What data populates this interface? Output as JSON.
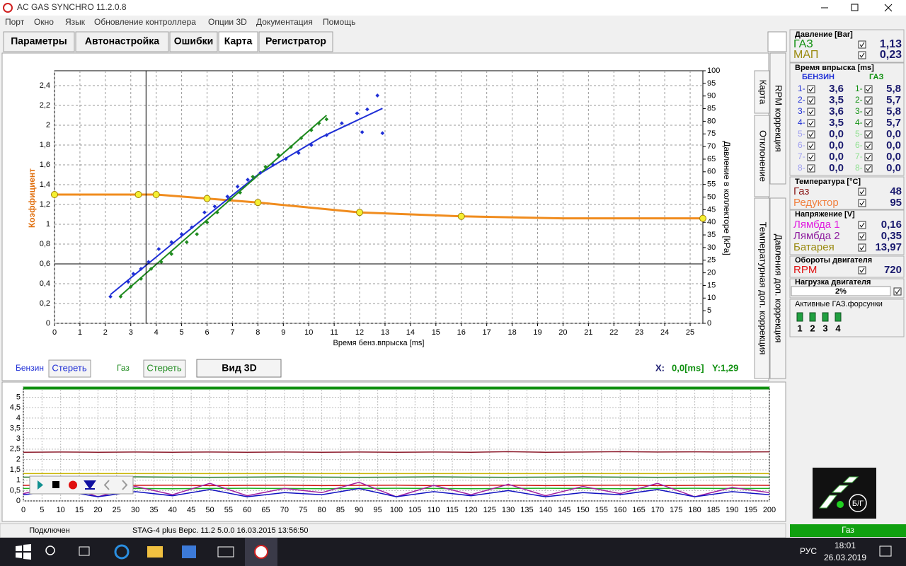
{
  "window": {
    "title": "AC GAS SYNCHRO  11.2.0.8"
  },
  "menu": [
    "Порт",
    "Окно",
    "Язык",
    "Обновление контроллера",
    "Опции 3D",
    "Документация",
    "Помощь"
  ],
  "tabs": [
    "Параметры",
    "Автонастройка",
    "Ошибки",
    "Карта",
    "Регистратор"
  ],
  "side_tabs": [
    "Карта",
    "RPM коррекция",
    "Отклонение",
    "Давления доп. коррекция",
    "Температурная доп. коррекция"
  ],
  "map_chart": {
    "type": "scatter",
    "y_label": "Коэффициент",
    "y2_label": "Давление в коллекторе [kPa]",
    "x_label": "Время бенз.впрыска [ms]",
    "xlim": [
      0,
      25.5
    ],
    "ylim": [
      0,
      2.55
    ],
    "y2lim": [
      0,
      100
    ],
    "xticks": [
      0,
      1,
      2,
      3,
      4,
      5,
      6,
      7,
      8,
      9,
      10,
      11,
      12,
      13,
      14,
      15,
      16,
      17,
      18,
      19,
      20,
      21,
      22,
      23,
      24,
      25
    ],
    "yticks": [
      0,
      {
        "value": 0.2,
        "label": "0,2"
      },
      {
        "value": 0.4,
        "label": "0,4"
      },
      {
        "value": 0.6,
        "label": "0,6"
      },
      {
        "value": 0.8,
        "label": "0,8"
      },
      1,
      {
        "value": 1.2,
        "label": "1,2"
      },
      {
        "value": 1.4,
        "label": "1,4"
      },
      {
        "value": 1.6,
        "label": "1,6"
      },
      {
        "value": 1.8,
        "label": "1,8"
      },
      2,
      {
        "value": 2.2,
        "label": "2,2"
      },
      {
        "value": 2.4,
        "label": "2,4"
      }
    ],
    "y2ticks": [
      0,
      5,
      10,
      15,
      20,
      25,
      30,
      35,
      40,
      45,
      50,
      55,
      60,
      65,
      70,
      75,
      80,
      85,
      90,
      95,
      100
    ],
    "grid": true,
    "series": [
      {
        "name": "Бензин",
        "color": "#1f2fd6",
        "x": [
          2.2,
          2.9,
          3.1,
          3.4,
          3.7,
          4.1,
          4.6,
          5,
          5.4,
          5.9,
          6.3,
          6.8,
          7.2,
          7.6,
          8.1,
          8.6,
          9.1,
          9.6,
          10.1,
          10.7,
          11.3,
          11.9,
          12.3,
          12.7,
          12.9,
          12.1
        ],
        "values": [
          0.27,
          0.42,
          0.5,
          0.55,
          0.62,
          0.75,
          0.82,
          0.9,
          0.97,
          1.12,
          1.18,
          1.28,
          1.38,
          1.45,
          1.52,
          1.6,
          1.66,
          1.72,
          1.8,
          1.9,
          2.02,
          2.12,
          2.16,
          2.3,
          1.92,
          1.93
        ]
      },
      {
        "name": "Газ",
        "color": "#1e8a1e",
        "x": [
          2.6,
          3,
          3.4,
          3.8,
          4.2,
          4.6,
          5.2,
          5.6,
          6,
          6.4,
          6.9,
          7.3,
          7.8,
          8.3,
          8.8,
          9.3,
          9.7,
          10.1,
          10.4,
          10.7
        ],
        "values": [
          0.27,
          0.37,
          0.45,
          0.55,
          0.62,
          0.7,
          0.82,
          0.9,
          1.02,
          1.12,
          1.25,
          1.32,
          1.48,
          1.58,
          1.7,
          1.78,
          1.87,
          1.95,
          2.02,
          2.06
        ]
      }
    ],
    "fits": [
      {
        "color": "#1f2fd6",
        "x": [
          2.2,
          5,
          8,
          10.5,
          12.9
        ],
        "values": [
          0.29,
          0.88,
          1.5,
          1.88,
          2.17
        ]
      },
      {
        "color": "#1e8a1e",
        "x": [
          2.6,
          10.7
        ],
        "values": [
          0.28,
          2.1
        ]
      }
    ],
    "curve": {
      "color": "#f08c1e",
      "x": [
        0,
        3.3,
        4,
        6,
        8,
        12,
        16,
        20,
        25.5
      ],
      "values": [
        1.3,
        1.3,
        1.3,
        1.26,
        1.22,
        1.12,
        1.08,
        1.06,
        1.06
      ]
    },
    "points": {
      "color": "#f5f032",
      "x": [
        0,
        3.3,
        4,
        6,
        8,
        12,
        16,
        25.5
      ],
      "values": [
        1.3,
        1.3,
        1.3,
        1.26,
        1.22,
        1.12,
        1.08,
        1.06
      ]
    },
    "cursor": {
      "x": 3.6,
      "y": 0.6
    }
  },
  "map_controls": {
    "petrol": "Бензин",
    "clear_petrol": "Стереть",
    "gas": "Газ",
    "clear_gas": "Стереть",
    "view3d": "Вид 3D",
    "x_label": "X:",
    "x_value": "0,0[ms]",
    "y_value": "Y:1,29"
  },
  "scope_chart": {
    "type": "line",
    "xlim": [
      0,
      200
    ],
    "ylim": [
      0,
      5.5
    ],
    "xticks": [
      0,
      5,
      10,
      15,
      20,
      25,
      30,
      35,
      40,
      45,
      50,
      55,
      60,
      65,
      70,
      75,
      80,
      85,
      90,
      95,
      100,
      105,
      110,
      115,
      120,
      125,
      130,
      135,
      140,
      145,
      150,
      155,
      160,
      165,
      170,
      175,
      180,
      185,
      190,
      195,
      200
    ],
    "yticks": [
      0,
      {
        "value": 0.5,
        "label": "0,5"
      },
      1,
      {
        "value": 1.5,
        "label": "1,5"
      },
      2,
      {
        "value": 2.5,
        "label": "2,5"
      },
      3,
      {
        "value": 3.5,
        "label": "3,5"
      },
      4,
      {
        "value": 4.5,
        "label": "4,5"
      },
      5
    ],
    "grid": true,
    "x": [
      0,
      10,
      20,
      30,
      40,
      50,
      60,
      70,
      80,
      90,
      100,
      110,
      120,
      130,
      140,
      150,
      160,
      170,
      180,
      190,
      200
    ],
    "series": [
      {
        "color": "#109010",
        "values": [
          5.45,
          5.45,
          5.45,
          5.45,
          5.45,
          5.45,
          5.45,
          5.45,
          5.45,
          5.45,
          5.45,
          5.45,
          5.45,
          5.45,
          5.45,
          5.45,
          5.45,
          5.45,
          5.45,
          5.45,
          5.45
        ]
      },
      {
        "color": "#8b1a2a",
        "values": [
          2.35,
          2.36,
          2.35,
          2.36,
          2.35,
          2.36,
          2.35,
          2.36,
          2.35,
          2.36,
          2.35,
          2.36,
          2.35,
          2.38,
          2.35,
          2.36,
          2.38,
          2.36,
          2.37,
          2.36,
          2.37
        ]
      },
      {
        "color": "#c8b400",
        "values": [
          1.32,
          1.32,
          1.32,
          1.32,
          1.32,
          1.32,
          1.32,
          1.32,
          1.32,
          1.32,
          1.32,
          1.32,
          1.32,
          1.32,
          1.32,
          1.32,
          1.32,
          1.32,
          1.32,
          1.32,
          1.32
        ]
      },
      {
        "color": "#2e7d32",
        "values": [
          1.15,
          1.14,
          1.15,
          1.16,
          1.15,
          1.14,
          1.15,
          1.16,
          1.15,
          1.14,
          1.15,
          1.16,
          1.15,
          1.14,
          1.15,
          1.16,
          1.15,
          1.14,
          1.15,
          1.16,
          1.15
        ]
      },
      {
        "color": "#d01010",
        "values": [
          0.75,
          0.76,
          0.74,
          0.75,
          0.76,
          0.74,
          0.75,
          0.76,
          0.74,
          0.75,
          0.76,
          0.74,
          0.75,
          0.76,
          0.74,
          0.75,
          0.76,
          0.74,
          0.75,
          0.76,
          0.75
        ]
      },
      {
        "color": "#20b020",
        "values": [
          0.6,
          0.6,
          0.61,
          0.6,
          0.59,
          0.6,
          0.61,
          0.6,
          0.59,
          0.6,
          0.61,
          0.6,
          0.59,
          0.6,
          0.61,
          0.6,
          0.59,
          0.6,
          0.61,
          0.6,
          0.6
        ]
      },
      {
        "color": "#a020a0",
        "values": [
          0.35,
          0.8,
          0.2,
          0.7,
          0.3,
          0.85,
          0.25,
          0.6,
          0.4,
          0.9,
          0.2,
          0.75,
          0.3,
          0.8,
          0.25,
          0.7,
          0.35,
          0.85,
          0.2,
          0.65,
          0.4
        ]
      },
      {
        "color": "#1010c0",
        "values": [
          0.3,
          0.5,
          0.2,
          0.45,
          0.25,
          0.55,
          0.2,
          0.4,
          0.3,
          0.6,
          0.2,
          0.45,
          0.25,
          0.5,
          0.2,
          0.4,
          0.3,
          0.55,
          0.2,
          0.45,
          0.3
        ]
      }
    ]
  },
  "panel": {
    "pressure": {
      "title": "Давление [Bar]",
      "rows": [
        {
          "label": "ГАЗ",
          "value": "1,13",
          "color": "#109010"
        },
        {
          "label": "МАП",
          "value": "0,23",
          "color": "#9a8a10"
        }
      ]
    },
    "injection": {
      "title": "Время впрыска [ms]",
      "petrol_title": "БЕНЗИН",
      "gas_title": "ГАЗ",
      "numbers": [
        "1-",
        "2-",
        "3-",
        "4-",
        "5-",
        "6-",
        "7-",
        "8-"
      ],
      "petrol": [
        "3,6",
        "3,5",
        "3,6",
        "3,5",
        "0,0",
        "0,0",
        "0,0",
        "0,0"
      ],
      "gas": [
        "5,8",
        "5,7",
        "5,8",
        "5,7",
        "0,0",
        "0,0",
        "0,0",
        "0,0"
      ]
    },
    "temperature": {
      "title": "Температура  [°C]",
      "rows": [
        {
          "label": "Газ",
          "value": "48",
          "color": "#8b1a1a"
        },
        {
          "label": "Редуктор",
          "value": "95",
          "color": "#f08040"
        }
      ]
    },
    "voltage": {
      "title": "Напряжение [V]",
      "rows": [
        {
          "label": "Лямбда 1",
          "value": "0,16",
          "color": "#e020e0"
        },
        {
          "label": "Лямбда 2",
          "value": "0,35",
          "color": "#9020a0"
        },
        {
          "label": "Батарея",
          "value": "13,97",
          "color": "#9a8a10"
        }
      ]
    },
    "rpm": {
      "title": "Обороты двигателя",
      "rows": [
        {
          "label": "RPM",
          "value": "720",
          "color": "#e01010"
        }
      ]
    },
    "load": {
      "title": "Нагрузка двигателя",
      "value": "2%"
    },
    "injectors": {
      "title": "Активные ГАЗ.форсунки",
      "numbers": [
        "1",
        "2",
        "3",
        "4"
      ]
    },
    "mode": "Б/Г"
  },
  "status": {
    "state": "Подключен",
    "device": "STAG-4 plus   Верс. 11.2  5.0.0     16.03.2015 13:56:50",
    "fuel": "Газ"
  },
  "taskbar": {
    "lang": "РУС",
    "time": "18:01",
    "date": "26.03.2019"
  }
}
